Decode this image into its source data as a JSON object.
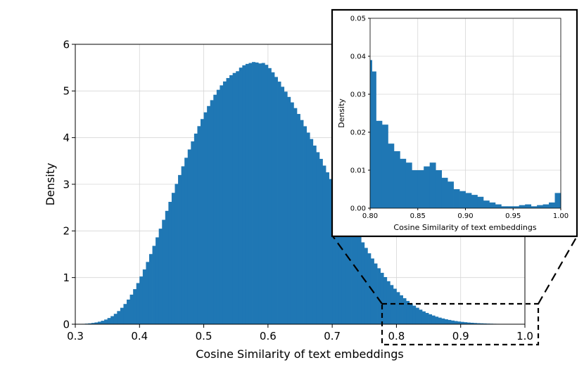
{
  "chart_data": [
    {
      "type": "bar",
      "name": "main-histogram",
      "title": "",
      "xlabel": "Cosine Similarity of text embeddings",
      "ylabel": "Density",
      "xlim": [
        0.3,
        1.0
      ],
      "ylim": [
        0,
        6
      ],
      "grid": true,
      "bar_color": "#1f77b4",
      "bin_width": 0.005,
      "bin_start": 0.3,
      "xticks": [
        0.3,
        0.4,
        0.5,
        0.6,
        0.7,
        0.8,
        0.9,
        1.0
      ],
      "xtick_labels": [
        "0.3",
        "0.4",
        "0.5",
        "0.6",
        "0.7",
        "0.8",
        "0.9",
        "1.0"
      ],
      "yticks": [
        0,
        1,
        2,
        3,
        4,
        5,
        6
      ],
      "ytick_labels": [
        "0",
        "1",
        "2",
        "3",
        "4",
        "5",
        "6"
      ],
      "values": [
        0.003,
        0.005,
        0.008,
        0.012,
        0.018,
        0.027,
        0.038,
        0.054,
        0.074,
        0.1,
        0.133,
        0.173,
        0.223,
        0.282,
        0.352,
        0.434,
        0.528,
        0.634,
        0.752,
        0.882,
        1.023,
        1.174,
        1.335,
        1.504,
        1.68,
        1.862,
        2.048,
        2.238,
        2.43,
        2.623,
        2.816,
        3.008,
        3.198,
        3.385,
        3.568,
        3.746,
        3.919,
        4.086,
        4.246,
        4.398,
        4.542,
        4.677,
        4.803,
        4.919,
        5.025,
        5.12,
        5.204,
        5.277,
        5.338,
        5.386,
        5.423,
        5.5,
        5.55,
        5.58,
        5.6,
        5.62,
        5.61,
        5.59,
        5.6,
        5.56,
        5.49,
        5.4,
        5.3,
        5.2,
        5.09,
        4.985,
        4.872,
        4.755,
        4.633,
        4.507,
        4.377,
        4.244,
        4.108,
        3.97,
        3.829,
        3.687,
        3.544,
        3.4,
        3.256,
        3.112,
        2.968,
        2.825,
        2.683,
        2.543,
        2.405,
        2.269,
        2.136,
        2.006,
        1.879,
        1.755,
        1.636,
        1.52,
        1.409,
        1.302,
        1.2,
        1.102,
        1.01,
        0.922,
        0.839,
        0.761,
        0.688,
        0.62,
        0.557,
        0.499,
        0.446,
        0.397,
        0.353,
        0.312,
        0.275,
        0.242,
        0.213,
        0.186,
        0.162,
        0.141,
        0.123,
        0.106,
        0.092,
        0.079,
        0.068,
        0.058,
        0.05,
        0.043,
        0.036,
        0.031,
        0.026,
        0.022,
        0.019,
        0.016,
        0.013,
        0.011,
        0.009,
        0.008,
        0.007,
        0.006,
        0.005,
        0.004,
        0.003,
        0.002,
        0.002,
        0.002
      ]
    },
    {
      "type": "bar",
      "name": "inset-histogram",
      "title": "",
      "xlabel": "Cosine Similarity of text embeddings",
      "ylabel": "Density",
      "xlim": [
        0.8,
        1.0
      ],
      "ylim": [
        0,
        0.05
      ],
      "grid": true,
      "bar_color": "#1f77b4",
      "bin_width": 0.00625,
      "bin_start": 0.8,
      "xticks": [
        0.8,
        0.85,
        0.9,
        0.95,
        1.0
      ],
      "xtick_labels": [
        "0.80",
        "0.85",
        "0.90",
        "0.95",
        "1.00"
      ],
      "yticks": [
        0,
        0.01,
        0.02,
        0.03,
        0.04,
        0.05
      ],
      "ytick_labels": [
        "0.00",
        "0.01",
        "0.02",
        "0.03",
        "0.04",
        "0.05"
      ],
      "edge_value": 0.039,
      "values": [
        0.036,
        0.023,
        0.022,
        0.017,
        0.015,
        0.013,
        0.012,
        0.01,
        0.01,
        0.011,
        0.012,
        0.01,
        0.008,
        0.007,
        0.005,
        0.0045,
        0.004,
        0.0035,
        0.003,
        0.002,
        0.0015,
        0.001,
        0.0005,
        0.0005,
        0.0005,
        0.0008,
        0.001,
        0.0005,
        0.0008,
        0.001,
        0.0015,
        0.004
      ]
    }
  ]
}
